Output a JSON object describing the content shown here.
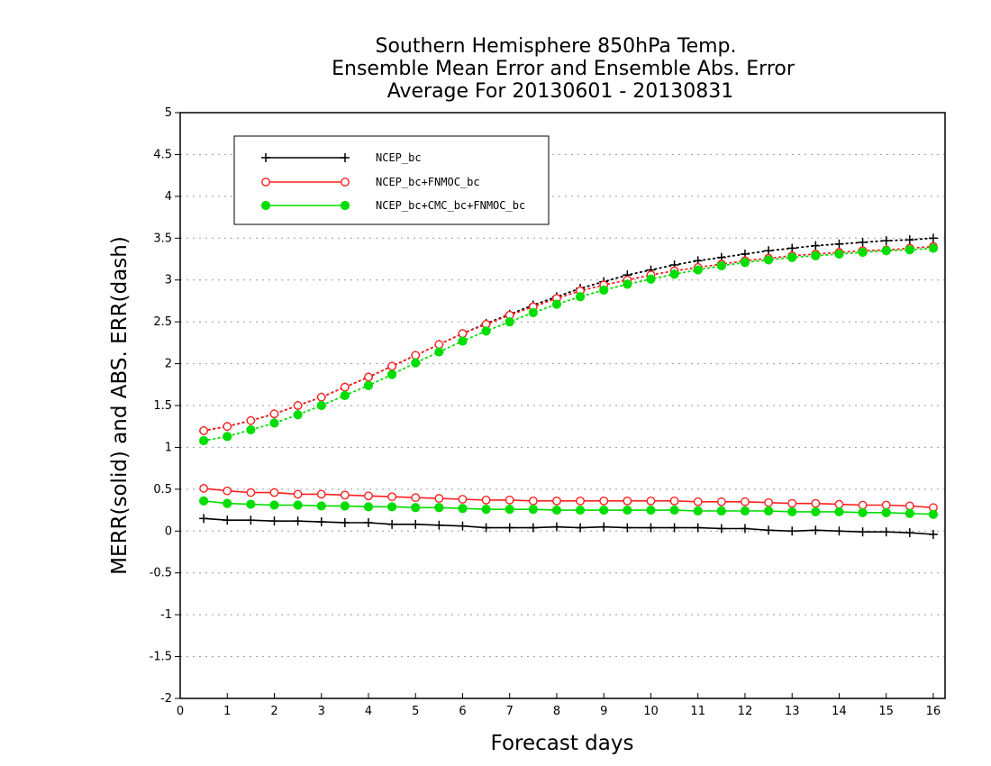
{
  "chart_data": {
    "type": "line",
    "title_lines": [
      "Southern Hemisphere 850hPa Temp.",
      "Ensemble Mean Error and Ensemble Abs. Error",
      "Average For 20130601 - 20130831"
    ],
    "xlabel": "Forecast days",
    "ylabel": "MERR(solid) and ABS. ERR(dash)",
    "xlim": [
      0,
      16.25
    ],
    "ylim": [
      -2,
      5
    ],
    "x_ticks": [
      "0",
      "1",
      "2",
      "3",
      "4",
      "5",
      "6",
      "7",
      "8",
      "9",
      "10",
      "11",
      "12",
      "13",
      "14",
      "15",
      "16"
    ],
    "y_ticks": [
      "5",
      "4.5",
      "4",
      "3.5",
      "3",
      "2.5",
      "2",
      "1.5",
      "1",
      "0.5",
      "0",
      "-0.5",
      "-1",
      "-1.5",
      "-2"
    ],
    "grid": "horizontal dotted",
    "legend_position": "top-left",
    "x": [
      0.5,
      1,
      1.5,
      2,
      2.5,
      3,
      3.5,
      4,
      4.5,
      5,
      5.5,
      6,
      6.5,
      7,
      7.5,
      8,
      8.5,
      9,
      9.5,
      10,
      10.5,
      11,
      11.5,
      12,
      12.5,
      13,
      13.5,
      14,
      14.5,
      15,
      15.5,
      16
    ],
    "series": [
      {
        "name": "NCEP_bc",
        "color": "#000000",
        "marker": "plus",
        "merr": [
          0.15,
          0.13,
          0.13,
          0.12,
          0.12,
          0.11,
          0.1,
          0.1,
          0.08,
          0.08,
          0.07,
          0.06,
          0.04,
          0.04,
          0.04,
          0.05,
          0.04,
          0.05,
          0.04,
          0.04,
          0.04,
          0.04,
          0.03,
          0.03,
          0.01,
          0.0,
          0.01,
          0.0,
          -0.01,
          -0.01,
          -0.02,
          -0.04
        ],
        "abs_err": [
          1.2,
          1.25,
          1.32,
          1.4,
          1.5,
          1.6,
          1.72,
          1.84,
          1.97,
          2.1,
          2.23,
          2.36,
          2.48,
          2.59,
          2.7,
          2.8,
          2.9,
          2.98,
          3.06,
          3.12,
          3.18,
          3.23,
          3.27,
          3.31,
          3.35,
          3.38,
          3.41,
          3.43,
          3.45,
          3.47,
          3.48,
          3.5
        ]
      },
      {
        "name": "NCEP_bc+FNMOC_bc",
        "color": "#ff2020",
        "marker": "open-circle",
        "merr": [
          0.51,
          0.48,
          0.46,
          0.46,
          0.44,
          0.44,
          0.43,
          0.42,
          0.41,
          0.4,
          0.39,
          0.38,
          0.37,
          0.37,
          0.36,
          0.36,
          0.36,
          0.36,
          0.36,
          0.36,
          0.36,
          0.35,
          0.35,
          0.35,
          0.34,
          0.33,
          0.33,
          0.32,
          0.31,
          0.31,
          0.3,
          0.28
        ],
        "abs_err": [
          1.2,
          1.25,
          1.32,
          1.4,
          1.5,
          1.6,
          1.72,
          1.84,
          1.97,
          2.1,
          2.23,
          2.36,
          2.47,
          2.58,
          2.68,
          2.78,
          2.87,
          2.94,
          3.0,
          3.06,
          3.11,
          3.15,
          3.19,
          3.23,
          3.26,
          3.29,
          3.31,
          3.33,
          3.35,
          3.36,
          3.38,
          3.4
        ]
      },
      {
        "name": "NCEP_bc+CMC_bc+FNMOC_bc",
        "color": "#00dd00",
        "marker": "filled-circle",
        "merr": [
          0.36,
          0.33,
          0.32,
          0.31,
          0.31,
          0.3,
          0.3,
          0.29,
          0.29,
          0.28,
          0.28,
          0.27,
          0.26,
          0.26,
          0.26,
          0.25,
          0.25,
          0.25,
          0.25,
          0.25,
          0.25,
          0.24,
          0.24,
          0.24,
          0.24,
          0.23,
          0.23,
          0.23,
          0.22,
          0.22,
          0.21,
          0.2
        ],
        "abs_err": [
          1.08,
          1.13,
          1.21,
          1.29,
          1.39,
          1.5,
          1.62,
          1.74,
          1.87,
          2.01,
          2.14,
          2.27,
          2.39,
          2.5,
          2.61,
          2.71,
          2.8,
          2.88,
          2.95,
          3.01,
          3.07,
          3.12,
          3.17,
          3.21,
          3.24,
          3.27,
          3.29,
          3.31,
          3.33,
          3.35,
          3.36,
          3.38
        ]
      }
    ]
  }
}
